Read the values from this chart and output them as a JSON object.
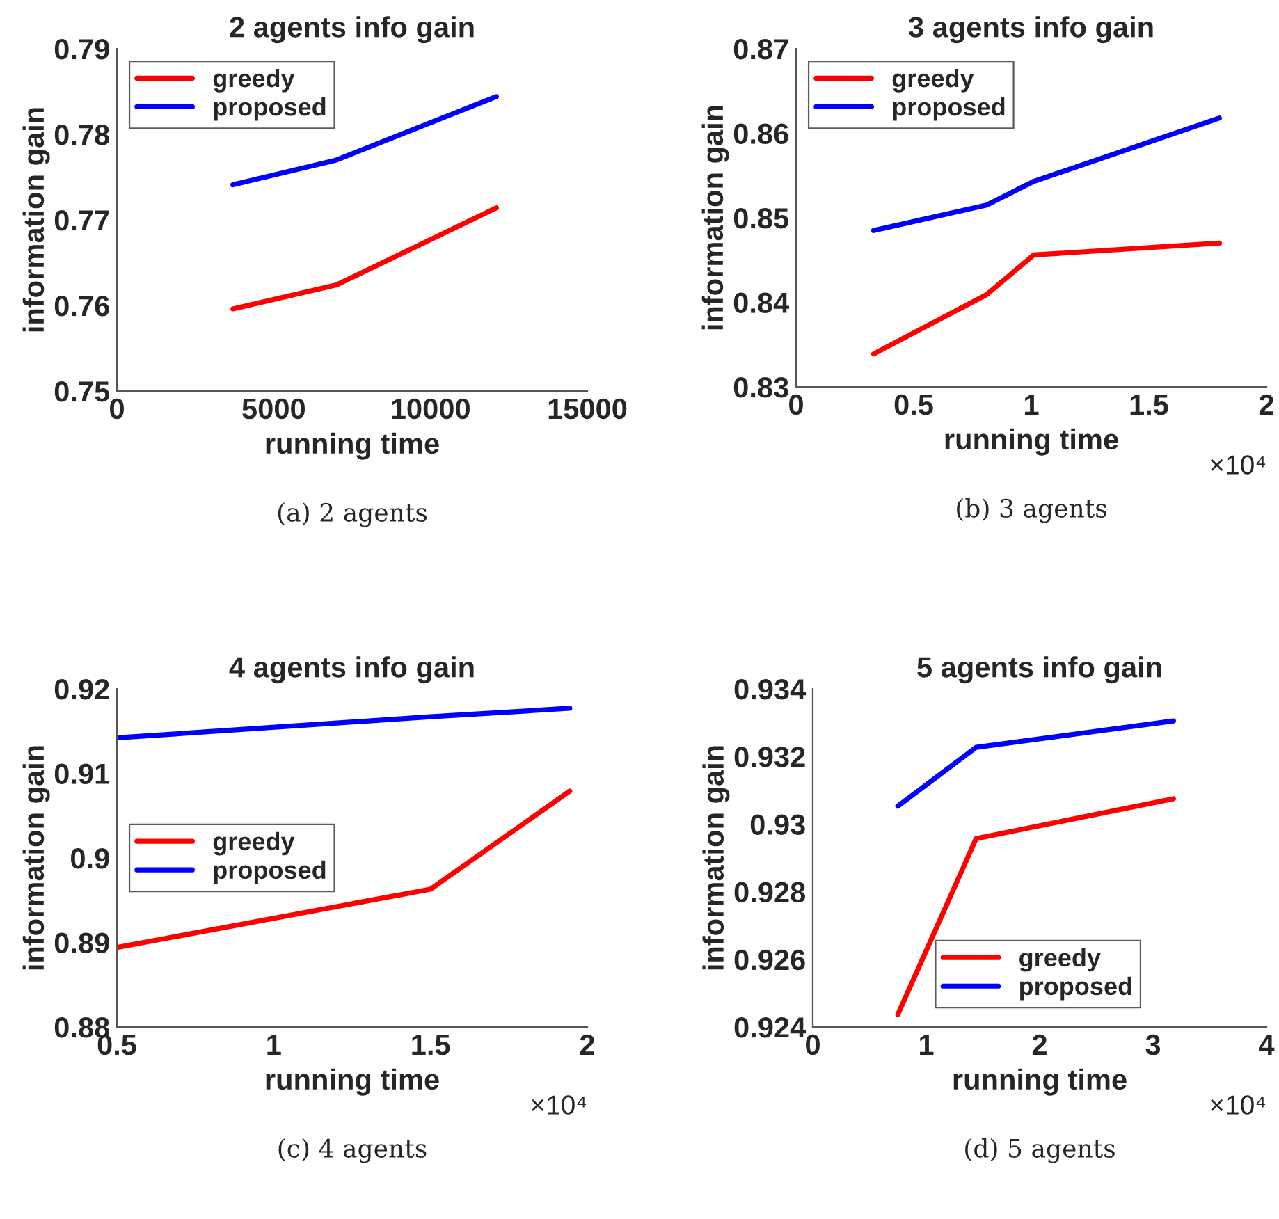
{
  "chart_data": [
    {
      "type": "line",
      "title": "2 agents info gain",
      "xlabel": "running time",
      "ylabel": "information gain",
      "x": [
        3700,
        7000,
        12100
      ],
      "series": [
        {
          "name": "greedy",
          "color": "#ff0000",
          "values": [
            0.7596,
            0.7624,
            0.7714
          ]
        },
        {
          "name": "proposed",
          "color": "#0000ff",
          "values": [
            0.7741,
            0.777,
            0.7844
          ]
        }
      ],
      "xlim": [
        0,
        15000
      ],
      "xticks": [
        0,
        5000,
        10000,
        15000
      ],
      "ylim": [
        0.75,
        0.79
      ],
      "yticks": [
        0.75,
        0.76,
        0.77,
        0.78,
        0.79
      ],
      "legend": "top left",
      "grid": false,
      "annotations": [
        "(a) 2 agents"
      ]
    },
    {
      "type": "line",
      "title": "3 agents info gain",
      "xlabel": "running time",
      "ylabel": "information gain",
      "x": [
        0.33,
        0.81,
        1.01,
        1.8
      ],
      "series": [
        {
          "name": "greedy",
          "color": "#ff0000",
          "values": [
            0.8339,
            0.8409,
            0.8456,
            0.847
          ]
        },
        {
          "name": "proposed",
          "color": "#0000ff",
          "values": [
            0.8485,
            0.8515,
            0.8543,
            0.8618
          ]
        }
      ],
      "xlim": [
        0,
        2
      ],
      "xticks": [
        0,
        0.5,
        1,
        1.5,
        2
      ],
      "ylim": [
        0.83,
        0.87
      ],
      "yticks": [
        0.83,
        0.84,
        0.85,
        0.86,
        0.87
      ],
      "legend": "top left",
      "grid": false,
      "annotations": [
        "×10⁴",
        "(b) 3 agents"
      ]
    },
    {
      "type": "line",
      "title": "4 agents info gain",
      "xlabel": "running time",
      "ylabel": "information gain",
      "x": [
        0.5,
        1.5,
        1.944
      ],
      "series": [
        {
          "name": "greedy",
          "color": "#ff0000",
          "values": [
            0.8894,
            0.8963,
            0.9079
          ]
        },
        {
          "name": "proposed",
          "color": "#0000ff",
          "values": [
            0.9142,
            0.9167,
            0.9177
          ]
        }
      ],
      "xlim": [
        0.5,
        2
      ],
      "xticks": [
        0.5,
        1,
        1.5,
        2
      ],
      "ylim": [
        0.88,
        0.92
      ],
      "yticks": [
        0.88,
        0.89,
        0.9,
        0.91,
        0.92
      ],
      "legend": "center left",
      "grid": false,
      "annotations": [
        "×10⁴",
        "(c) 4 agents"
      ]
    },
    {
      "type": "line",
      "title": "5 agents info gain",
      "xlabel": "running time",
      "ylabel": "information gain",
      "x": [
        0.75,
        1.44,
        3.18
      ],
      "series": [
        {
          "name": "greedy",
          "color": "#ff0000",
          "values": [
            0.92437,
            0.92957,
            0.93075
          ]
        },
        {
          "name": "proposed",
          "color": "#0000ff",
          "values": [
            0.93053,
            0.93227,
            0.93305
          ]
        }
      ],
      "xlim": [
        0,
        4
      ],
      "xticks": [
        0,
        1,
        2,
        3,
        4
      ],
      "ylim": [
        0.924,
        0.934
      ],
      "yticks": [
        0.924,
        0.926,
        0.928,
        0.93,
        0.932,
        0.934
      ],
      "legend": "bottom right",
      "grid": false,
      "annotations": [
        "×10⁴",
        "(d) 5 agents"
      ]
    }
  ]
}
